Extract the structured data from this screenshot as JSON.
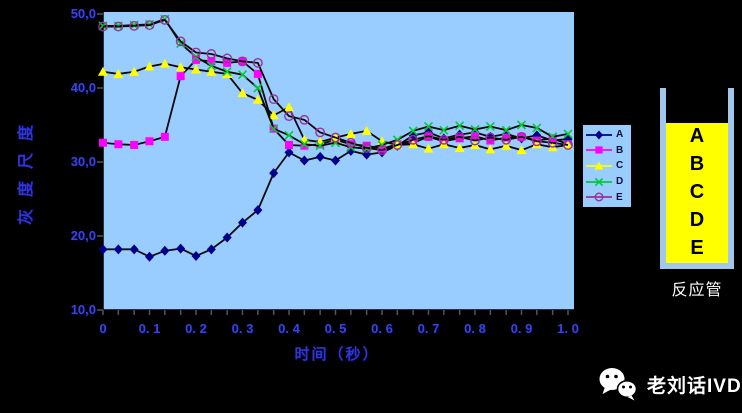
{
  "chart_data": {
    "type": "line",
    "title": "",
    "xlabel": "时间（秒）",
    "ylabel": "灰度尺度",
    "xlim": [
      0,
      1.0
    ],
    "ylim": [
      10,
      50
    ],
    "grid": false,
    "legend_position": "right",
    "plot_bg_color": "#99CCFF",
    "plot_line_color": "#0a0a0a",
    "x_tick_values": [
      0,
      0.1,
      0.2,
      0.3,
      0.4,
      0.5,
      0.6,
      0.7,
      0.8,
      0.9,
      1.0
    ],
    "x_tick_labels": [
      "0",
      "0. 1",
      "0. 2",
      "0. 3",
      "0. 4",
      "0. 5",
      "0. 6",
      "0. 7",
      "0. 8",
      "0. 9",
      "1. 0"
    ],
    "y_tick_values": [
      10,
      20,
      30,
      40,
      50
    ],
    "y_tick_labels": [
      "10,0",
      "20,0",
      "30,0",
      "40,0",
      "50,0"
    ],
    "x": [
      0,
      0.033,
      0.067,
      0.1,
      0.133,
      0.167,
      0.2,
      0.233,
      0.267,
      0.3,
      0.333,
      0.367,
      0.4,
      0.433,
      0.467,
      0.5,
      0.533,
      0.567,
      0.6,
      0.633,
      0.667,
      0.7,
      0.733,
      0.767,
      0.8,
      0.833,
      0.867,
      0.9,
      0.933,
      0.967,
      1.0
    ],
    "series": [
      {
        "name": "A",
        "marker": "diamond",
        "color": "#00008B",
        "values": [
          18.2,
          18.2,
          18.2,
          17.2,
          18.0,
          18.3,
          17.3,
          18.2,
          19.8,
          21.8,
          23.5,
          28.5,
          31.3,
          30.2,
          30.7,
          30.2,
          31.5,
          31.0,
          31.3,
          32.2,
          33.6,
          34.0,
          33.2,
          33.7,
          34.0,
          33.4,
          33.8,
          33.2,
          33.6,
          32.9,
          33.1
        ]
      },
      {
        "name": "B",
        "marker": "square",
        "color": "#FF00FF",
        "values": [
          32.6,
          32.4,
          32.3,
          32.8,
          33.4,
          41.6,
          43.8,
          43.6,
          43.4,
          43.6,
          41.9,
          34.5,
          32.3,
          32.2,
          32.4,
          33.0,
          32.4,
          32.2,
          31.8,
          32.4,
          32.6,
          33.4,
          32.8,
          33.2,
          33.5,
          32.9,
          33.3,
          33.4,
          32.9,
          33.2,
          32.4
        ]
      },
      {
        "name": "C",
        "marker": "triangle",
        "color": "#FFFF00",
        "values": [
          42.2,
          41.9,
          42.2,
          42.9,
          43.3,
          42.8,
          42.5,
          42.2,
          41.9,
          39.3,
          38.4,
          36.3,
          37.4,
          33.0,
          32.7,
          33.3,
          33.8,
          34.2,
          32.8,
          32.3,
          32.4,
          31.8,
          32.4,
          31.9,
          32.3,
          31.7,
          32.2,
          31.6,
          32.4,
          32.0,
          32.3
        ]
      },
      {
        "name": "D",
        "marker": "x",
        "color": "#00CC33",
        "values": [
          48.4,
          48.4,
          48.5,
          48.6,
          49.3,
          46.0,
          44.2,
          43.0,
          42.2,
          41.8,
          40.0,
          34.5,
          33.6,
          32.4,
          32.2,
          32.6,
          32.0,
          31.8,
          32.3,
          33.0,
          34.2,
          34.8,
          34.3,
          34.9,
          34.4,
          34.8,
          34.3,
          35.0,
          34.6,
          33.4,
          33.8
        ]
      },
      {
        "name": "E",
        "marker": "circle-open",
        "color": "#993399",
        "values": [
          48.3,
          48.3,
          48.4,
          48.5,
          49.2,
          46.3,
          44.8,
          44.6,
          44.0,
          43.6,
          43.4,
          38.5,
          36.2,
          35.7,
          34.0,
          33.3,
          32.6,
          31.9,
          31.6,
          32.3,
          33.0,
          33.5,
          33.0,
          33.4,
          32.9,
          33.3,
          33.0,
          33.4,
          32.8,
          32.6,
          32.3
        ]
      }
    ]
  },
  "tube": {
    "letters": [
      "A",
      "B",
      "C",
      "D",
      "E"
    ],
    "label": "反应管",
    "fill_color": "#FFFF00",
    "wall_color": "#a3c7ea"
  },
  "watermark": {
    "text": "老刘话IVD"
  },
  "colors": {
    "background": "#000000",
    "axis_text": "#3137cc"
  }
}
